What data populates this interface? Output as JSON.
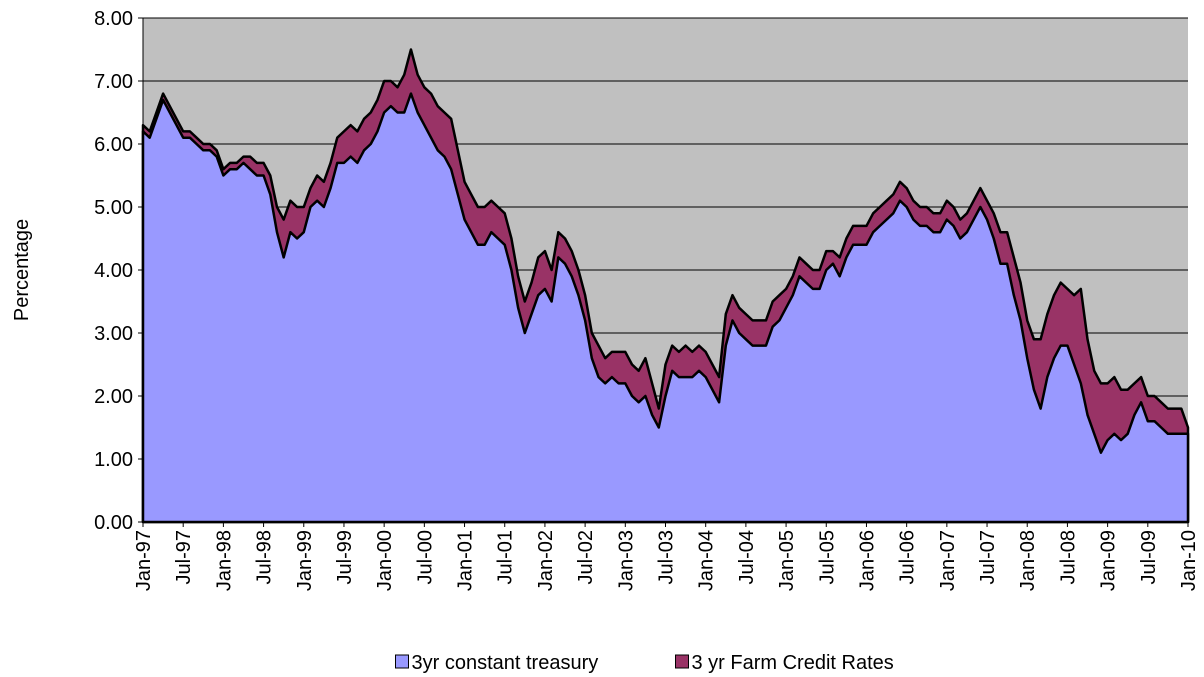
{
  "chart_data": {
    "type": "area",
    "y_label": "Percentage",
    "categories": [
      "Jan-97",
      null,
      null,
      null,
      null,
      null,
      "Jul-97",
      null,
      null,
      null,
      null,
      null,
      "Jan-98",
      null,
      null,
      null,
      null,
      null,
      "Jul-98",
      null,
      null,
      null,
      null,
      null,
      "Jan-99",
      null,
      null,
      null,
      null,
      null,
      "Jul-99",
      null,
      null,
      null,
      null,
      null,
      "Jan-00",
      null,
      null,
      null,
      null,
      null,
      "Jul-00",
      null,
      null,
      null,
      null,
      null,
      "Jan-01",
      null,
      null,
      null,
      null,
      null,
      "Jul-01",
      null,
      null,
      null,
      null,
      null,
      "Jan-02",
      null,
      null,
      null,
      null,
      null,
      "Jul-02",
      null,
      null,
      null,
      null,
      null,
      "Jan-03",
      null,
      null,
      null,
      null,
      null,
      "Jul-03",
      null,
      null,
      null,
      null,
      null,
      "Jan-04",
      null,
      null,
      null,
      null,
      null,
      "Jul-04",
      null,
      null,
      null,
      null,
      null,
      "Jan-05",
      null,
      null,
      null,
      null,
      null,
      "Jul-05",
      null,
      null,
      null,
      null,
      null,
      "Jan-06",
      null,
      null,
      null,
      null,
      null,
      "Jul-06",
      null,
      null,
      null,
      null,
      null,
      "Jan-07",
      null,
      null,
      null,
      null,
      null,
      "Jul-07",
      null,
      null,
      null,
      null,
      null,
      "Jan-08",
      null,
      null,
      null,
      null,
      null,
      "Jul-08",
      null,
      null,
      null,
      null,
      null,
      "Jan-09",
      null,
      null,
      null,
      null,
      null,
      "Jul-09",
      null,
      null,
      null,
      null,
      null,
      "Jan-10"
    ],
    "series": [
      {
        "name": "3yr constant treasury",
        "color": "#9999ff",
        "values": [
          6.2,
          6.1,
          6.4,
          6.7,
          6.5,
          6.3,
          6.1,
          6.1,
          6.0,
          5.9,
          5.9,
          5.8,
          5.5,
          5.6,
          5.6,
          5.7,
          5.6,
          5.5,
          5.5,
          5.2,
          4.6,
          4.2,
          4.6,
          4.5,
          4.6,
          5.0,
          5.1,
          5.0,
          5.3,
          5.7,
          5.7,
          5.8,
          5.7,
          5.9,
          6.0,
          6.2,
          6.5,
          6.6,
          6.5,
          6.5,
          6.8,
          6.5,
          6.3,
          6.1,
          5.9,
          5.8,
          5.6,
          5.2,
          4.8,
          4.6,
          4.4,
          4.4,
          4.6,
          4.5,
          4.4,
          4.0,
          3.4,
          3.0,
          3.3,
          3.6,
          3.7,
          3.5,
          4.2,
          4.1,
          3.9,
          3.6,
          3.2,
          2.6,
          2.3,
          2.2,
          2.3,
          2.2,
          2.2,
          2.0,
          1.9,
          2.0,
          1.7,
          1.5,
          2.0,
          2.4,
          2.3,
          2.3,
          2.3,
          2.4,
          2.3,
          2.1,
          1.9,
          2.8,
          3.2,
          3.0,
          2.9,
          2.8,
          2.8,
          2.8,
          3.1,
          3.2,
          3.4,
          3.6,
          3.9,
          3.8,
          3.7,
          3.7,
          4.0,
          4.1,
          3.9,
          4.2,
          4.4,
          4.4,
          4.4,
          4.6,
          4.7,
          4.8,
          4.9,
          5.1,
          5.0,
          4.8,
          4.7,
          4.7,
          4.6,
          4.6,
          4.8,
          4.7,
          4.5,
          4.6,
          4.8,
          5.0,
          4.8,
          4.5,
          4.1,
          4.1,
          3.6,
          3.2,
          2.6,
          2.1,
          1.8,
          2.3,
          2.6,
          2.8,
          2.8,
          2.5,
          2.2,
          1.7,
          1.4,
          1.1,
          1.3,
          1.4,
          1.3,
          1.4,
          1.7,
          1.9,
          1.6,
          1.6,
          1.5,
          1.4,
          1.4,
          1.4,
          1.4
        ]
      },
      {
        "name": "3 yr Farm Credit Rates",
        "color": "#993366",
        "values": [
          6.3,
          6.2,
          6.5,
          6.8,
          6.6,
          6.4,
          6.2,
          6.2,
          6.1,
          6.0,
          6.0,
          5.9,
          5.6,
          5.7,
          5.7,
          5.8,
          5.8,
          5.7,
          5.7,
          5.5,
          5.0,
          4.8,
          5.1,
          5.0,
          5.0,
          5.3,
          5.5,
          5.4,
          5.7,
          6.1,
          6.2,
          6.3,
          6.2,
          6.4,
          6.5,
          6.7,
          7.0,
          7.0,
          6.9,
          7.1,
          7.5,
          7.1,
          6.9,
          6.8,
          6.6,
          6.5,
          6.4,
          5.9,
          5.4,
          5.2,
          5.0,
          5.0,
          5.1,
          5.0,
          4.9,
          4.5,
          3.9,
          3.5,
          3.8,
          4.2,
          4.3,
          4.0,
          4.6,
          4.5,
          4.3,
          4.0,
          3.6,
          3.0,
          2.8,
          2.6,
          2.7,
          2.7,
          2.7,
          2.5,
          2.4,
          2.6,
          2.2,
          1.8,
          2.5,
          2.8,
          2.7,
          2.8,
          2.7,
          2.8,
          2.7,
          2.5,
          2.3,
          3.3,
          3.6,
          3.4,
          3.3,
          3.2,
          3.2,
          3.2,
          3.5,
          3.6,
          3.7,
          3.9,
          4.2,
          4.1,
          4.0,
          4.0,
          4.3,
          4.3,
          4.2,
          4.5,
          4.7,
          4.7,
          4.7,
          4.9,
          5.0,
          5.1,
          5.2,
          5.4,
          5.3,
          5.1,
          5.0,
          5.0,
          4.9,
          4.9,
          5.1,
          5.0,
          4.8,
          4.9,
          5.1,
          5.3,
          5.1,
          4.9,
          4.6,
          4.6,
          4.2,
          3.8,
          3.2,
          2.9,
          2.9,
          3.3,
          3.6,
          3.8,
          3.7,
          3.6,
          3.7,
          2.9,
          2.4,
          2.2,
          2.2,
          2.3,
          2.1,
          2.1,
          2.2,
          2.3,
          2.0,
          2.0,
          1.9,
          1.8,
          1.8,
          1.8,
          1.5
        ]
      }
    ],
    "ylim": [
      0,
      8
    ],
    "yticks": [
      {
        "value": 0,
        "label": "0.00"
      },
      {
        "value": 1,
        "label": "1.00"
      },
      {
        "value": 2,
        "label": "2.00"
      },
      {
        "value": 3,
        "label": "3.00"
      },
      {
        "value": 4,
        "label": "4.00"
      },
      {
        "value": 5,
        "label": "5.00"
      },
      {
        "value": 6,
        "label": "6.00"
      },
      {
        "value": 7,
        "label": "7.00"
      },
      {
        "value": 8,
        "label": "8.00"
      }
    ],
    "grid": true,
    "plot_background": "#c0c0c0",
    "legend": "bottom"
  }
}
